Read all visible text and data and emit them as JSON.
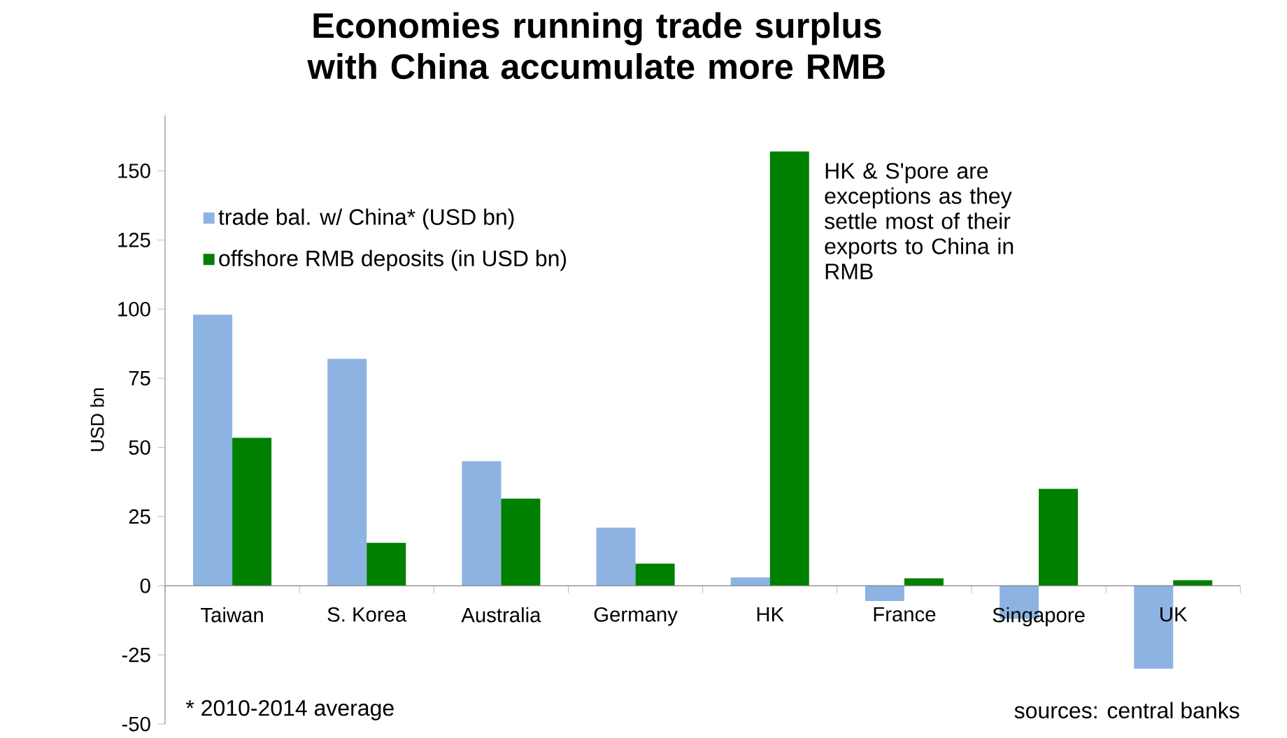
{
  "chart_data": {
    "type": "bar",
    "title": "Economies running trade surplus with China accumulate more RMB",
    "ylabel": "USD bn",
    "categories": [
      "Taiwan",
      "S. Korea",
      "Australia",
      "Germany",
      "HK",
      "France",
      "Singapore",
      "UK"
    ],
    "series": [
      {
        "name": "trade bal. w/ China* (USD bn)",
        "color": "#8db3e2",
        "values": [
          98,
          82,
          45,
          21,
          3,
          -5.5,
          -12,
          -30
        ]
      },
      {
        "name": "offshore RMB deposits (in USD bn)",
        "color": "#008000",
        "values": [
          53.5,
          15.5,
          31.5,
          8,
          157,
          2.7,
          35,
          2
        ]
      }
    ],
    "ylim": [
      -50,
      170
    ],
    "yticks": [
      -50,
      -25,
      0,
      25,
      50,
      75,
      100,
      125,
      150
    ],
    "legend": "top left",
    "annotations": [
      "HK & S'pore are exceptions as they settle most of their exports to China in RMB",
      "* 2010-2014 average",
      "sources: central banks"
    ]
  }
}
